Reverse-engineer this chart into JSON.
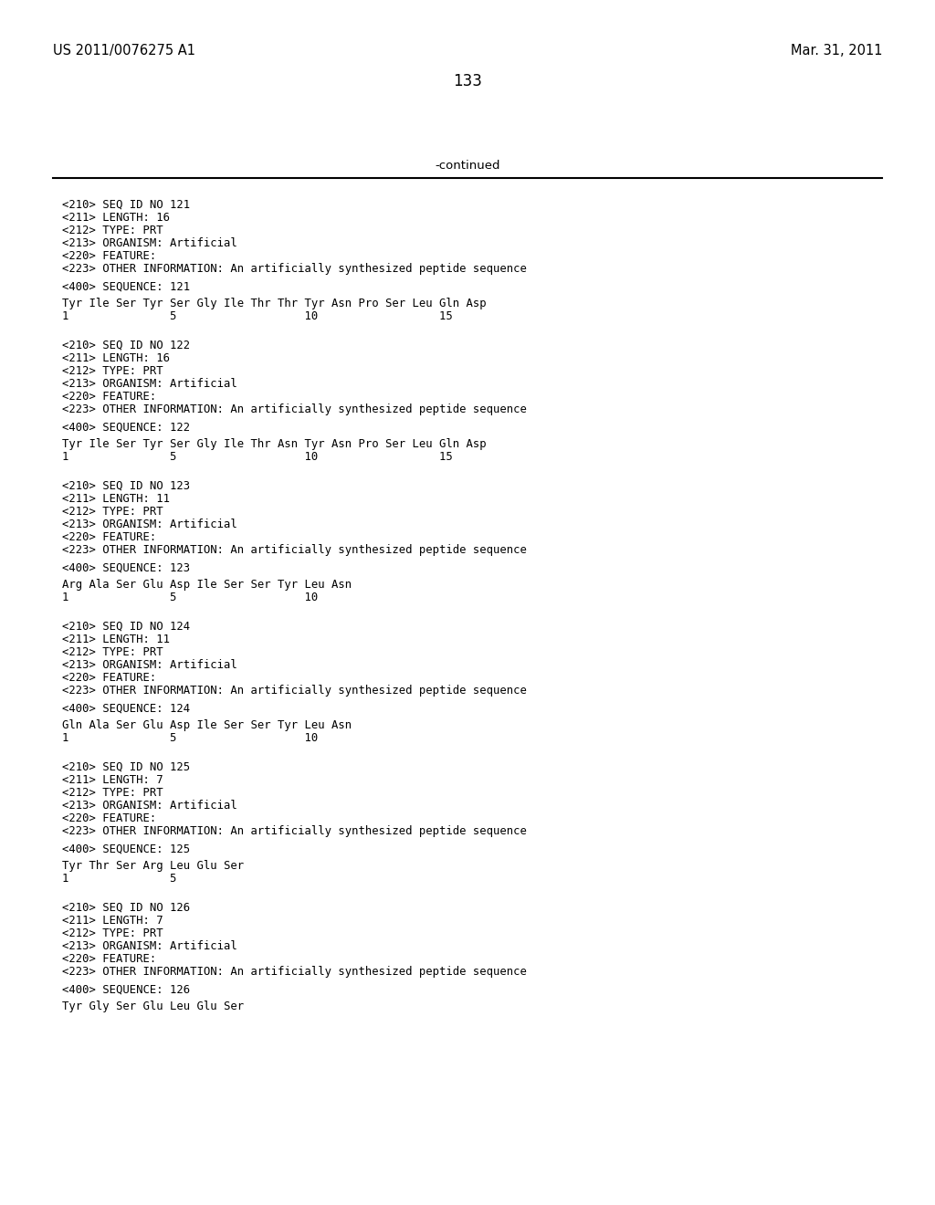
{
  "header_left": "US 2011/0076275 A1",
  "header_right": "Mar. 31, 2011",
  "page_number": "133",
  "continued_label": "-continued",
  "background_color": "#ffffff",
  "text_color": "#000000",
  "font_size_header": 10.5,
  "font_size_body": 9.5,
  "font_size_page": 12,
  "blocks": [
    {
      "meta": [
        "<210> SEQ ID NO 121",
        "<211> LENGTH: 16",
        "<212> TYPE: PRT",
        "<213> ORGANISM: Artificial",
        "<220> FEATURE:",
        "<223> OTHER INFORMATION: An artificially synthesized peptide sequence"
      ],
      "sequence_label": "<400> SEQUENCE: 121",
      "sequence_line": "Tyr Ile Ser Tyr Ser Gly Ile Thr Thr Tyr Asn Pro Ser Leu Gln Asp",
      "numbering": "1               5                   10                  15"
    },
    {
      "meta": [
        "<210> SEQ ID NO 122",
        "<211> LENGTH: 16",
        "<212> TYPE: PRT",
        "<213> ORGANISM: Artificial",
        "<220> FEATURE:",
        "<223> OTHER INFORMATION: An artificially synthesized peptide sequence"
      ],
      "sequence_label": "<400> SEQUENCE: 122",
      "sequence_line": "Tyr Ile Ser Tyr Ser Gly Ile Thr Asn Tyr Asn Pro Ser Leu Gln Asp",
      "numbering": "1               5                   10                  15"
    },
    {
      "meta": [
        "<210> SEQ ID NO 123",
        "<211> LENGTH: 11",
        "<212> TYPE: PRT",
        "<213> ORGANISM: Artificial",
        "<220> FEATURE:",
        "<223> OTHER INFORMATION: An artificially synthesized peptide sequence"
      ],
      "sequence_label": "<400> SEQUENCE: 123",
      "sequence_line": "Arg Ala Ser Glu Asp Ile Ser Ser Tyr Leu Asn",
      "numbering": "1               5                   10"
    },
    {
      "meta": [
        "<210> SEQ ID NO 124",
        "<211> LENGTH: 11",
        "<212> TYPE: PRT",
        "<213> ORGANISM: Artificial",
        "<220> FEATURE:",
        "<223> OTHER INFORMATION: An artificially synthesized peptide sequence"
      ],
      "sequence_label": "<400> SEQUENCE: 124",
      "sequence_line": "Gln Ala Ser Glu Asp Ile Ser Ser Tyr Leu Asn",
      "numbering": "1               5                   10"
    },
    {
      "meta": [
        "<210> SEQ ID NO 125",
        "<211> LENGTH: 7",
        "<212> TYPE: PRT",
        "<213> ORGANISM: Artificial",
        "<220> FEATURE:",
        "<223> OTHER INFORMATION: An artificially synthesized peptide sequence"
      ],
      "sequence_label": "<400> SEQUENCE: 125",
      "sequence_line": "Tyr Thr Ser Arg Leu Glu Ser",
      "numbering": "1               5"
    },
    {
      "meta": [
        "<210> SEQ ID NO 126",
        "<211> LENGTH: 7",
        "<212> TYPE: PRT",
        "<213> ORGANISM: Artificial",
        "<220> FEATURE:",
        "<223> OTHER INFORMATION: An artificially synthesized peptide sequence"
      ],
      "sequence_label": "<400> SEQUENCE: 126",
      "sequence_line": "Tyr Gly Ser Glu Leu Glu Ser",
      "numbering": ""
    }
  ]
}
